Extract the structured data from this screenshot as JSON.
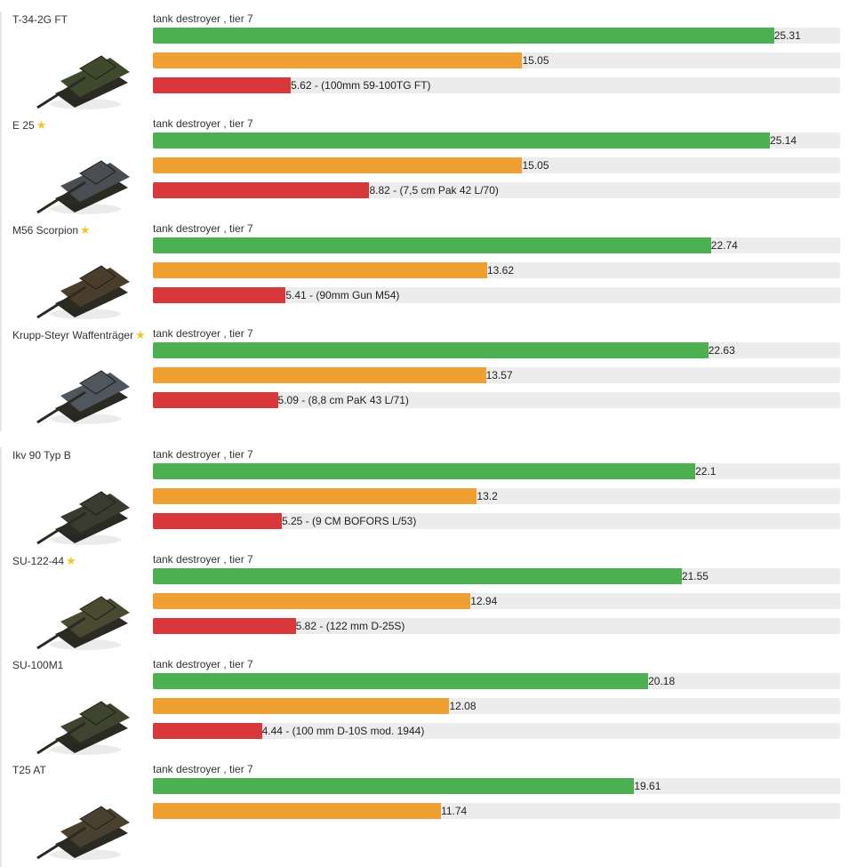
{
  "colors": {
    "green": "#4caf50",
    "orange": "#f0a030",
    "red": "#d9383a",
    "track": "#ececec",
    "star": "#f3c623"
  },
  "chart_data": {
    "type": "bar",
    "orientation": "horizontal",
    "scale_max": 28,
    "series_colors": [
      "green",
      "orange",
      "red"
    ],
    "tanks": [
      {
        "name": "T-34-2G FT",
        "premium": false,
        "subtitle": "tank destroyer , tier 7",
        "values": [
          25.31,
          15.05,
          5.62
        ],
        "labels": [
          "25.31",
          "15.05",
          "5.62 - (100mm 59-100TG FT)"
        ],
        "body_color": "#3f4a2c",
        "icon": "tank-icon"
      },
      {
        "name": "E 25",
        "premium": true,
        "subtitle": "tank destroyer , tier 7",
        "values": [
          25.14,
          15.05,
          8.82
        ],
        "labels": [
          "25.14",
          "15.05",
          "8.82 - (7,5 cm Pak 42 L/70)"
        ],
        "body_color": "#4a4e52",
        "icon": "tank-icon"
      },
      {
        "name": "M56 Scorpion",
        "premium": true,
        "subtitle": "tank destroyer , tier 7",
        "values": [
          22.74,
          13.62,
          5.41
        ],
        "labels": [
          "22.74",
          "13.62",
          "5.41 - (90mm Gun M54)"
        ],
        "body_color": "#4b3d2c",
        "icon": "tank-icon"
      },
      {
        "name": "Krupp-Steyr Waffenträger",
        "premium": true,
        "subtitle": "tank destroyer , tier 7",
        "values": [
          22.63,
          13.57,
          5.09
        ],
        "labels": [
          "22.63",
          "13.57",
          "5.09 - (8,8 cm PaK 43 L/71)"
        ],
        "body_color": "#4f565e",
        "icon": "tank-icon"
      },
      {
        "name": "Ikv 90 Typ B",
        "premium": false,
        "subtitle": "tank destroyer , tier 7",
        "values": [
          22.1,
          13.2,
          5.25
        ],
        "labels": [
          "22.1",
          "13.2",
          "5.25 - (9 CM BOFORS L/53)"
        ],
        "body_color": "#3a3c30",
        "icon": "tank-icon"
      },
      {
        "name": "SU-122-44",
        "premium": true,
        "subtitle": "tank destroyer , tier 7",
        "values": [
          21.55,
          12.94,
          5.82
        ],
        "labels": [
          "21.55",
          "12.94",
          "5.82 - (122 mm D-25S)"
        ],
        "body_color": "#4a4a32",
        "icon": "tank-icon"
      },
      {
        "name": "SU-100M1",
        "premium": false,
        "subtitle": "tank destroyer , tier 7",
        "values": [
          20.18,
          12.08,
          4.44
        ],
        "labels": [
          "20.18",
          "12.08",
          "4.44 - (100 mm D-10S mod. 1944)"
        ],
        "body_color": "#3e4430",
        "icon": "tank-icon"
      },
      {
        "name": "T25 AT",
        "premium": false,
        "subtitle": "tank destroyer , tier 7",
        "values": [
          19.61,
          11.74
        ],
        "labels": [
          "19.61",
          "11.74"
        ],
        "body_color": "#4a4030",
        "icon": "tank-icon"
      }
    ]
  }
}
